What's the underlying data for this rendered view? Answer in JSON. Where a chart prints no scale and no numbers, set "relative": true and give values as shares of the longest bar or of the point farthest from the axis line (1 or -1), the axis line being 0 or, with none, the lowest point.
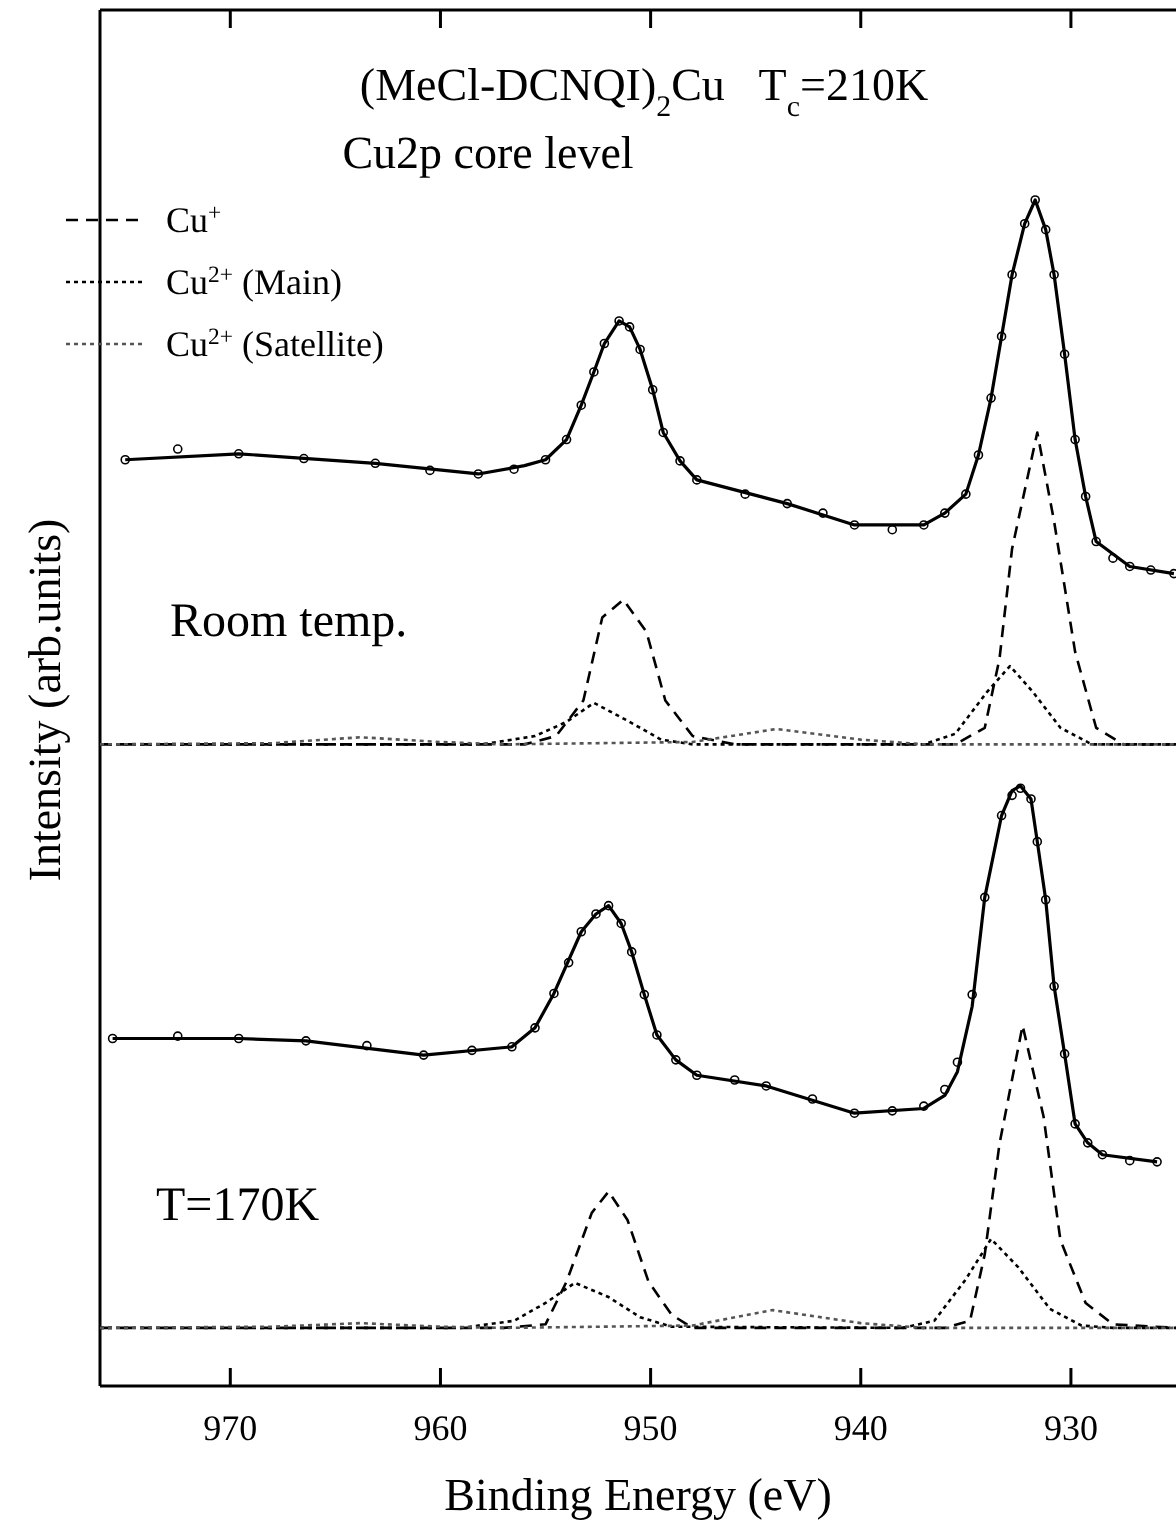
{
  "chart_data": {
    "type": "line",
    "title": "(MeCl-DCNQI)$_{2}$Cu   T$_{c}$=210K",
    "subtitle": "Cu2p core level",
    "xlabel": "Binding Energy (eV)",
    "ylabel": "Intensity (arb.units)",
    "annotations": [
      "Room temp.",
      "T=170K"
    ],
    "relative": true,
    "xlim": [
      976.2,
      925
    ],
    "xticks": [
      970,
      960,
      950,
      940,
      930
    ],
    "grid": false,
    "legend": "top left",
    "series": [
      {
        "type": "scatter",
        "marker": "circle",
        "color": "#000000",
        "x": [
          975.0,
          972.5,
          969.6,
          966.5,
          963.1,
          960.5,
          958.2,
          956.5,
          955.0,
          954.0,
          953.3,
          952.7,
          952.2,
          951.5,
          951.0,
          950.5,
          949.9,
          949.4,
          948.6,
          947.8,
          945.5,
          943.5,
          941.8,
          940.3,
          938.5,
          937.0,
          936.0,
          935.0,
          934.4,
          933.8,
          933.3,
          932.8,
          932.2,
          931.7,
          931.2,
          930.8,
          930.3,
          929.8,
          929.3,
          928.8,
          928.0,
          927.2,
          926.2,
          925.1
        ],
        "values": [
          0.781,
          0.79,
          0.786,
          0.782,
          0.778,
          0.772,
          0.769,
          0.773,
          0.781,
          0.798,
          0.827,
          0.855,
          0.879,
          0.898,
          0.893,
          0.874,
          0.84,
          0.804,
          0.78,
          0.764,
          0.752,
          0.744,
          0.736,
          0.726,
          0.722,
          0.726,
          0.736,
          0.752,
          0.785,
          0.833,
          0.885,
          0.937,
          0.98,
          1.0,
          0.975,
          0.937,
          0.87,
          0.798,
          0.75,
          0.712,
          0.698,
          0.691,
          0.688,
          0.685
        ]
      },
      {
        "line_style": "solid",
        "color": "#000000",
        "x": [
          975.0,
          969.6,
          963.1,
          958.2,
          956.0,
          955.0,
          954.0,
          953.3,
          952.7,
          952.2,
          951.5,
          951.0,
          950.5,
          949.9,
          949.4,
          948.6,
          947.8,
          943.5,
          940.3,
          937.0,
          936.0,
          935.0,
          934.4,
          933.8,
          933.3,
          932.8,
          932.2,
          931.7,
          931.2,
          930.8,
          930.3,
          929.8,
          929.3,
          928.8,
          927.2,
          925.1
        ],
        "values": [
          0.781,
          0.786,
          0.778,
          0.769,
          0.776,
          0.781,
          0.798,
          0.827,
          0.855,
          0.879,
          0.898,
          0.893,
          0.874,
          0.84,
          0.804,
          0.78,
          0.764,
          0.744,
          0.726,
          0.726,
          0.736,
          0.752,
          0.785,
          0.833,
          0.885,
          0.937,
          0.98,
          1.0,
          0.975,
          0.937,
          0.87,
          0.798,
          0.75,
          0.712,
          0.691,
          0.685
        ]
      },
      {
        "name": "Cu$^{+}$",
        "line_style": "dashed",
        "color": "#000000",
        "x": [
          976.2,
          956.0,
          954.5,
          953.2,
          952.3,
          951.3,
          950.2,
          949.3,
          948.0,
          946.0,
          935.5,
          934.1,
          933.4,
          932.8,
          931.6,
          930.8,
          929.8,
          928.8,
          927.5,
          925.0
        ],
        "values": [
          0.541,
          0.541,
          0.548,
          0.578,
          0.648,
          0.663,
          0.636,
          0.578,
          0.548,
          0.541,
          0.541,
          0.555,
          0.613,
          0.706,
          0.804,
          0.729,
          0.619,
          0.555,
          0.541,
          0.541
        ]
      },
      {
        "name": "Cu$^{2+}$ (Main)",
        "line_style": "dotted",
        "color": "#000000",
        "x": [
          976.2,
          958.0,
          955.5,
          954.0,
          952.7,
          951.0,
          949.5,
          948.0,
          937.0,
          935.5,
          934.0,
          932.9,
          931.8,
          930.5,
          929.0,
          925.0
        ],
        "values": [
          0.541,
          0.541,
          0.548,
          0.56,
          0.576,
          0.56,
          0.545,
          0.541,
          0.541,
          0.55,
          0.585,
          0.607,
          0.585,
          0.555,
          0.541,
          0.541
        ]
      },
      {
        "name": "Cu$^{2+}$ (Satellite)",
        "line_style": "dotted",
        "color": "#555555",
        "x": [
          976.2,
          968.0,
          963.8,
          960.0,
          957.0,
          948.0,
          944.0,
          940.0,
          937.0,
          925.0
        ],
        "values": [
          0.541,
          0.542,
          0.547,
          0.543,
          0.541,
          0.543,
          0.554,
          0.545,
          0.541,
          0.541
        ]
      },
      {
        "type": "scatter",
        "marker": "circle",
        "color": "#000000",
        "x": [
          975.6,
          972.5,
          969.6,
          966.4,
          963.5,
          960.8,
          958.5,
          956.6,
          955.5,
          954.6,
          953.9,
          953.3,
          952.6,
          952.0,
          951.4,
          950.9,
          950.3,
          949.7,
          948.8,
          947.8,
          946.0,
          944.5,
          942.3,
          940.3,
          938.5,
          937.0,
          936.0,
          935.4,
          934.7,
          934.1,
          933.3,
          932.8,
          932.4,
          931.9,
          931.6,
          931.2,
          930.8,
          930.3,
          929.8,
          929.2,
          928.5,
          927.2,
          925.9
        ],
        "values": [
          0.293,
          0.295,
          0.293,
          0.291,
          0.287,
          0.279,
          0.283,
          0.286,
          0.302,
          0.331,
          0.357,
          0.383,
          0.398,
          0.405,
          0.39,
          0.366,
          0.33,
          0.296,
          0.275,
          0.262,
          0.258,
          0.253,
          0.242,
          0.23,
          0.232,
          0.236,
          0.25,
          0.273,
          0.33,
          0.412,
          0.481,
          0.498,
          0.504,
          0.495,
          0.459,
          0.41,
          0.337,
          0.28,
          0.221,
          0.205,
          0.195,
          0.19,
          0.189
        ]
      },
      {
        "line_style": "solid",
        "color": "#000000",
        "x": [
          975.6,
          969.6,
          966.4,
          960.8,
          956.6,
          955.5,
          954.6,
          953.3,
          952.6,
          952.0,
          951.4,
          950.9,
          950.3,
          949.7,
          948.8,
          947.8,
          944.5,
          940.3,
          937.0,
          936.0,
          935.4,
          934.7,
          934.1,
          933.3,
          932.8,
          932.4,
          931.9,
          931.6,
          931.2,
          930.8,
          930.3,
          929.8,
          929.2,
          928.5,
          925.9
        ],
        "values": [
          0.293,
          0.293,
          0.291,
          0.279,
          0.286,
          0.302,
          0.331,
          0.383,
          0.398,
          0.405,
          0.39,
          0.366,
          0.33,
          0.296,
          0.275,
          0.262,
          0.253,
          0.23,
          0.234,
          0.245,
          0.265,
          0.32,
          0.412,
          0.481,
          0.502,
          0.506,
          0.495,
          0.459,
          0.41,
          0.337,
          0.28,
          0.221,
          0.205,
          0.195,
          0.189
        ]
      },
      {
        "line_style": "dashed",
        "color": "#000000",
        "x": [
          976.2,
          957.0,
          955.0,
          954.0,
          952.8,
          952.0,
          951.1,
          950.1,
          949.0,
          948.0,
          936.0,
          934.8,
          934.1,
          933.4,
          932.3,
          931.3,
          930.5,
          929.3,
          928.0,
          925.0
        ],
        "values": [
          0.049,
          0.049,
          0.052,
          0.088,
          0.146,
          0.164,
          0.14,
          0.088,
          0.06,
          0.049,
          0.049,
          0.055,
          0.111,
          0.204,
          0.304,
          0.227,
          0.123,
          0.07,
          0.052,
          0.049
        ]
      },
      {
        "line_style": "dotted",
        "color": "#000000",
        "x": [
          976.2,
          959.0,
          956.5,
          955.0,
          953.6,
          952.0,
          950.5,
          949.0,
          938.0,
          936.5,
          935.0,
          933.8,
          932.5,
          931.0,
          929.5,
          928.0,
          925.0
        ],
        "values": [
          0.049,
          0.049,
          0.055,
          0.07,
          0.087,
          0.075,
          0.058,
          0.05,
          0.049,
          0.055,
          0.09,
          0.124,
          0.1,
          0.065,
          0.051,
          0.049,
          0.049
        ]
      },
      {
        "line_style": "dotted",
        "color": "#555555",
        "x": [
          976.2,
          968.0,
          963.8,
          960.0,
          957.0,
          948.0,
          944.2,
          940.0,
          937.0,
          925.0
        ],
        "values": [
          0.049,
          0.05,
          0.053,
          0.05,
          0.049,
          0.051,
          0.064,
          0.053,
          0.049,
          0.049
        ]
      }
    ]
  }
}
